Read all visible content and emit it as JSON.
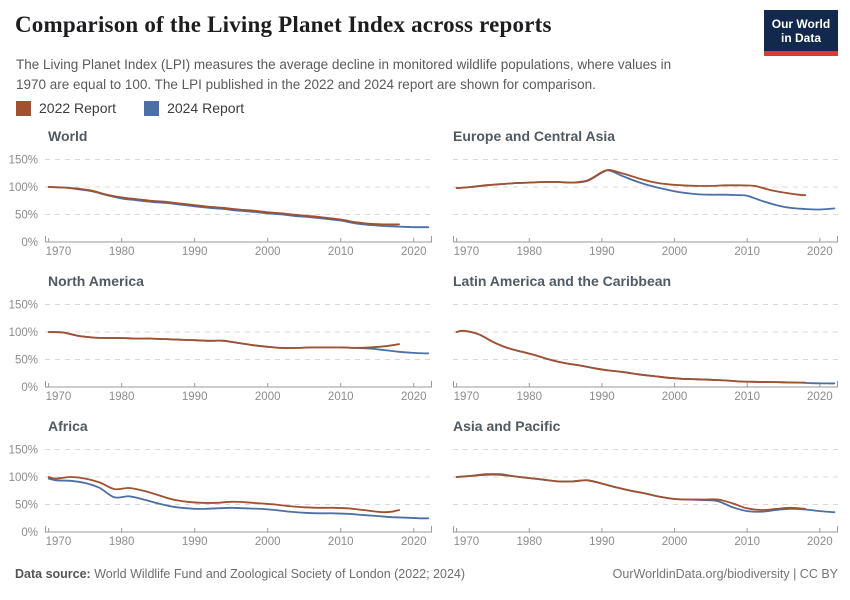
{
  "header": {
    "title": "Comparison of the Living Planet Index across reports",
    "subtitle_line1": "The Living Planet Index (LPI) measures the average decline in monitored wildlife populations, where values in",
    "subtitle_line2": "1970 are equal to 100. The LPI published in the 2022 and 2024 report are shown for comparison.",
    "logo": {
      "line1": "Our World",
      "line2": "in Data",
      "bg_color": "#12294d",
      "accent_color": "#d93a34"
    }
  },
  "legend": [
    {
      "label": "2022 Report",
      "color": "#A1512F"
    },
    {
      "label": "2024 Report",
      "color": "#4C6FA5"
    }
  ],
  "footer": {
    "source_label": "Data source:",
    "source_text": " World Wildlife Fund and Zoological Society of London (2022; 2024)",
    "right_text": "OurWorldinData.org/biodiversity | CC BY"
  },
  "chart_data": [
    {
      "type": "line",
      "title": "World",
      "show_y_labels": true,
      "xlim": [
        1969.5,
        2022.5
      ],
      "ylim": [
        0,
        160
      ],
      "x_ticks": [
        1970,
        1980,
        1990,
        2000,
        2010,
        2020
      ],
      "y_ticks": [
        0,
        50,
        100,
        150
      ],
      "y_tick_suffix": "%",
      "grid": "dashed",
      "series": [
        {
          "name": "2022 Report",
          "x": [
            1970,
            1972,
            1974,
            1976,
            1978,
            1980,
            1982,
            1984,
            1986,
            1988,
            1990,
            1992,
            1994,
            1996,
            1998,
            2000,
            2002,
            2004,
            2006,
            2008,
            2010,
            2012,
            2014,
            2016,
            2018
          ],
          "y": [
            100,
            99,
            97,
            93,
            86,
            81,
            78,
            75,
            73,
            70,
            67,
            64,
            62,
            59,
            57,
            54,
            52,
            49,
            47,
            44,
            41,
            36,
            33,
            32,
            32
          ]
        },
        {
          "name": "2024 Report",
          "x": [
            1970,
            1972,
            1974,
            1976,
            1978,
            1980,
            1982,
            1984,
            1986,
            1988,
            1990,
            1992,
            1994,
            1996,
            1998,
            2000,
            2002,
            2004,
            2006,
            2008,
            2010,
            2012,
            2014,
            2016,
            2018,
            2020,
            2022
          ],
          "y": [
            100,
            99,
            96,
            92,
            85,
            79,
            76,
            73,
            71,
            68,
            65,
            62,
            60,
            57,
            55,
            52,
            50,
            47,
            45,
            42,
            39,
            34,
            31,
            29,
            28,
            27,
            27
          ]
        }
      ]
    },
    {
      "type": "line",
      "title": "Europe and Central Asia",
      "show_y_labels": false,
      "xlim": [
        1969.5,
        2022.5
      ],
      "ylim": [
        0,
        160
      ],
      "x_ticks": [
        1970,
        1980,
        1990,
        2000,
        2010,
        2020
      ],
      "y_ticks": [
        0,
        50,
        100,
        150
      ],
      "y_tick_suffix": "%",
      "grid": "dashed",
      "series": [
        {
          "name": "2022 Report",
          "x": [
            1970,
            1972,
            1974,
            1976,
            1978,
            1980,
            1982,
            1984,
            1986,
            1988,
            1990,
            1991,
            1993,
            1995,
            1997,
            1999,
            2001,
            2003,
            2005,
            2007,
            2009,
            2011,
            2013,
            2015,
            2017,
            2018
          ],
          "y": [
            98,
            100,
            103,
            105,
            107,
            108,
            109,
            109,
            108,
            112,
            127,
            131,
            124,
            116,
            109,
            105,
            103,
            102,
            102,
            103,
            103,
            102,
            95,
            90,
            86,
            85
          ]
        },
        {
          "name": "2024 Report",
          "x": [
            1970,
            1972,
            1974,
            1976,
            1978,
            1980,
            1982,
            1984,
            1986,
            1988,
            1990,
            1991,
            1993,
            1995,
            1997,
            1999,
            2001,
            2003,
            2005,
            2007,
            2009,
            2010,
            2012,
            2014,
            2016,
            2018,
            2020,
            2022
          ],
          "y": [
            98,
            100,
            103,
            105,
            107,
            108,
            109,
            109,
            108,
            111,
            126,
            130,
            119,
            109,
            101,
            95,
            90,
            87,
            86,
            86,
            85,
            84,
            75,
            67,
            62,
            60,
            59,
            61
          ]
        }
      ]
    },
    {
      "type": "line",
      "title": "North America",
      "show_y_labels": true,
      "xlim": [
        1969.5,
        2022.5
      ],
      "ylim": [
        0,
        160
      ],
      "x_ticks": [
        1970,
        1980,
        1990,
        2000,
        2010,
        2020
      ],
      "y_ticks": [
        0,
        50,
        100,
        150
      ],
      "y_tick_suffix": "%",
      "grid": "dashed",
      "series": [
        {
          "name": "2022 Report",
          "x": [
            1970,
            1972,
            1974,
            1976,
            1978,
            1980,
            1982,
            1984,
            1986,
            1988,
            1990,
            1992,
            1994,
            1996,
            1998,
            2000,
            2002,
            2004,
            2006,
            2008,
            2010,
            2012,
            2014,
            2016,
            2018
          ],
          "y": [
            100,
            99,
            93,
            90,
            89,
            89,
            88,
            88,
            87,
            86,
            85,
            84,
            84,
            80,
            76,
            73,
            71,
            71,
            72,
            72,
            72,
            71,
            72,
            74,
            78
          ]
        },
        {
          "name": "2024 Report",
          "x": [
            1970,
            1972,
            1974,
            1976,
            1978,
            1980,
            1982,
            1984,
            1986,
            1988,
            1990,
            1992,
            1994,
            1996,
            1998,
            2000,
            2002,
            2004,
            2006,
            2008,
            2010,
            2012,
            2014,
            2016,
            2018,
            2020,
            2022
          ],
          "y": [
            100,
            99,
            93,
            90,
            89,
            89,
            88,
            88,
            87,
            86,
            85,
            84,
            84,
            80,
            76,
            73,
            71,
            71,
            72,
            72,
            72,
            71,
            70,
            67,
            64,
            62,
            61
          ]
        }
      ]
    },
    {
      "type": "line",
      "title": "Latin America and the Caribbean",
      "show_y_labels": false,
      "xlim": [
        1969.5,
        2022.5
      ],
      "ylim": [
        0,
        160
      ],
      "x_ticks": [
        1970,
        1980,
        1990,
        2000,
        2010,
        2020
      ],
      "y_ticks": [
        0,
        50,
        100,
        150
      ],
      "y_tick_suffix": "%",
      "grid": "dashed",
      "series": [
        {
          "name": "2022 Report",
          "x": [
            1970,
            1971,
            1973,
            1975,
            1977,
            1979,
            1981,
            1983,
            1985,
            1987,
            1989,
            1991,
            1993,
            1995,
            1997,
            1999,
            2001,
            2003,
            2005,
            2007,
            2009,
            2011,
            2013,
            2015,
            2017,
            2018
          ],
          "y": [
            100,
            102,
            96,
            82,
            71,
            64,
            57,
            49,
            43,
            39,
            34,
            30,
            27,
            23,
            20,
            17,
            15,
            14,
            13,
            12,
            10,
            9.5,
            9,
            8.5,
            8,
            8
          ]
        },
        {
          "name": "2024 Report",
          "x": [
            1970,
            1971,
            1973,
            1975,
            1977,
            1979,
            1981,
            1983,
            1985,
            1987,
            1989,
            1991,
            1993,
            1995,
            1997,
            1999,
            2001,
            2003,
            2005,
            2007,
            2009,
            2011,
            2013,
            2015,
            2017,
            2019,
            2021,
            2022
          ],
          "y": [
            100,
            102,
            96,
            82,
            71,
            64,
            57,
            49,
            43,
            39,
            34,
            30,
            27,
            23,
            20,
            17,
            15,
            14,
            13,
            12,
            10,
            9.5,
            9,
            8.5,
            8,
            7,
            6.5,
            6.5
          ]
        }
      ]
    },
    {
      "type": "line",
      "title": "Africa",
      "show_y_labels": true,
      "xlim": [
        1969.5,
        2022.5
      ],
      "ylim": [
        0,
        160
      ],
      "x_ticks": [
        1970,
        1980,
        1990,
        2000,
        2010,
        2020
      ],
      "y_ticks": [
        0,
        50,
        100,
        150
      ],
      "y_tick_suffix": "%",
      "grid": "dashed",
      "series": [
        {
          "name": "2022 Report",
          "x": [
            1970,
            1971,
            1973,
            1975,
            1977,
            1979,
            1981,
            1983,
            1985,
            1987,
            1989,
            1991,
            1993,
            1995,
            1997,
            1999,
            2001,
            2003,
            2005,
            2007,
            2009,
            2011,
            2013,
            2015,
            2016,
            2017,
            2018
          ],
          "y": [
            100,
            97,
            100,
            97,
            90,
            78,
            80,
            75,
            67,
            59,
            55,
            53,
            53,
            55,
            54,
            52,
            50,
            47,
            45,
            44,
            44,
            43,
            40,
            37,
            36,
            37,
            40
          ]
        },
        {
          "name": "2024 Report",
          "x": [
            1970,
            1971,
            1973,
            1975,
            1977,
            1979,
            1981,
            1983,
            1985,
            1987,
            1989,
            1991,
            1993,
            1995,
            1997,
            1999,
            2001,
            2003,
            2005,
            2007,
            2009,
            2011,
            2013,
            2015,
            2017,
            2019,
            2021,
            2022
          ],
          "y": [
            97,
            94,
            93,
            89,
            80,
            63,
            65,
            59,
            52,
            46,
            43,
            42,
            43,
            44,
            43,
            42,
            40,
            37,
            35,
            34,
            34,
            33,
            31,
            29,
            27,
            26,
            25,
            25
          ]
        }
      ]
    },
    {
      "type": "line",
      "title": "Asia and Pacific",
      "show_y_labels": false,
      "xlim": [
        1969.5,
        2022.5
      ],
      "ylim": [
        0,
        160
      ],
      "x_ticks": [
        1970,
        1980,
        1990,
        2000,
        2010,
        2020
      ],
      "y_ticks": [
        0,
        50,
        100,
        150
      ],
      "y_tick_suffix": "%",
      "grid": "dashed",
      "series": [
        {
          "name": "2022 Report",
          "x": [
            1970,
            1972,
            1974,
            1976,
            1978,
            1980,
            1982,
            1984,
            1986,
            1988,
            1990,
            1992,
            1994,
            1996,
            1998,
            2000,
            2002,
            2004,
            2006,
            2008,
            2010,
            2012,
            2014,
            2016,
            2018
          ],
          "y": [
            100,
            102,
            104,
            104,
            101,
            98,
            95,
            92,
            92,
            94,
            88,
            81,
            75,
            70,
            64,
            60,
            59,
            59,
            59,
            52,
            43,
            40,
            42,
            44,
            42
          ]
        },
        {
          "name": "2024 Report",
          "x": [
            1970,
            1972,
            1974,
            1976,
            1978,
            1980,
            1982,
            1984,
            1986,
            1988,
            1990,
            1992,
            1994,
            1996,
            1998,
            2000,
            2002,
            2004,
            2006,
            2008,
            2010,
            2012,
            2014,
            2016,
            2018,
            2020,
            2022
          ],
          "y": [
            100,
            102,
            105,
            105,
            101,
            98,
            95,
            92,
            92,
            94,
            88,
            81,
            75,
            70,
            64,
            60,
            59,
            58,
            56,
            45,
            38,
            37,
            40,
            42,
            41,
            38,
            36
          ]
        }
      ]
    }
  ]
}
